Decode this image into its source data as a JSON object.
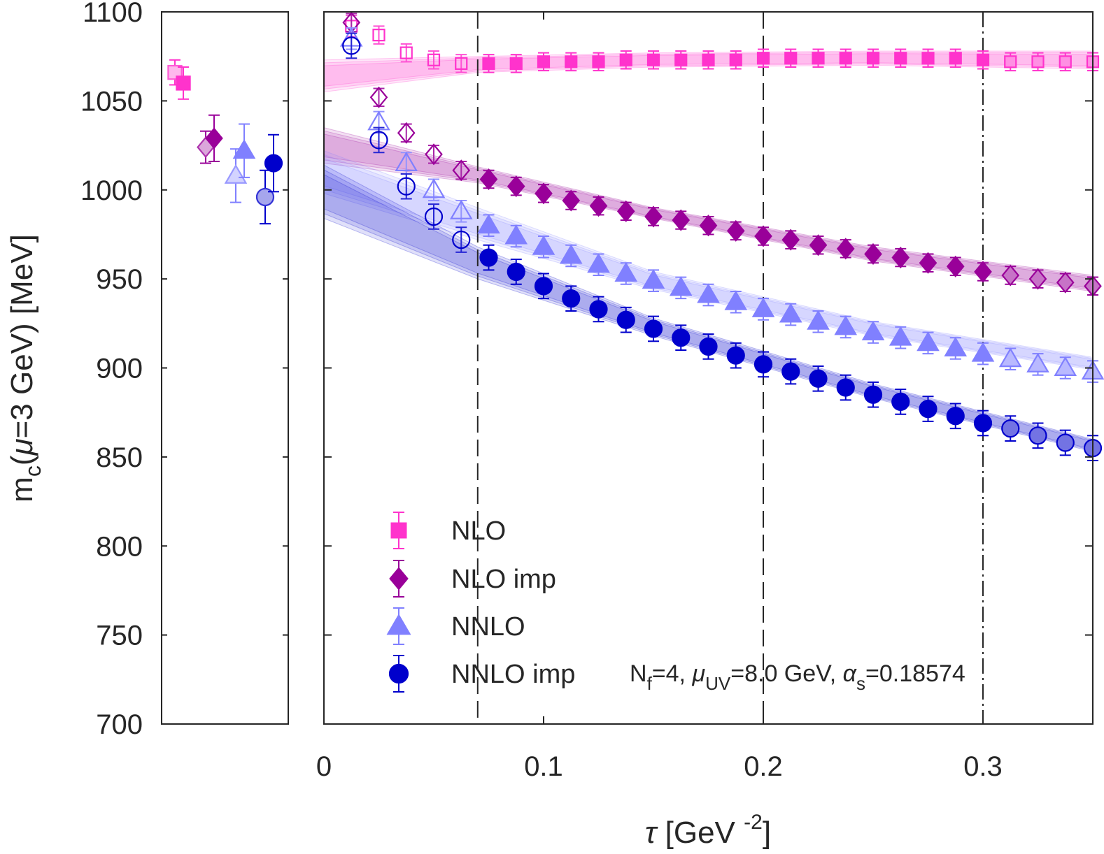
{
  "chart_data": {
    "type": "scatter",
    "title": "",
    "xlabel": {
      "symbol": "τ",
      "unit_base": "[GeV",
      "unit_exp": "-2",
      "close": "]"
    },
    "ylabel": {
      "base": "m",
      "sub": "c",
      "open": "(",
      "mu": "μ",
      "rest": "=3 GeV) [MeV]"
    },
    "xlim": [
      0,
      0.35
    ],
    "ylim": [
      700,
      1100
    ],
    "xticks": [
      "0",
      "0.1",
      "0.2",
      "0.3"
    ],
    "xtick_values": [
      0,
      0.1,
      0.2,
      0.3
    ],
    "yticks": [
      "700",
      "750",
      "800",
      "850",
      "900",
      "950",
      "1000",
      "1050",
      "1100"
    ],
    "ytick_values": [
      700,
      750,
      800,
      850,
      900,
      950,
      1000,
      1050,
      1100
    ],
    "vlines": [
      {
        "x": 0.07,
        "style": "dashed"
      },
      {
        "x": 0.2,
        "style": "dashed"
      },
      {
        "x": 0.3,
        "style": "dashdot"
      }
    ],
    "fit_range": [
      0.07,
      0.3
    ],
    "annotation": {
      "n": "N",
      "nsub": "f",
      "a": "=4, ",
      "mu": "μ",
      "musub": "UV",
      "b": "=8.0 GeV, ",
      "alpha": "α",
      "alphasub": "s",
      "c": "=0.18574"
    },
    "x": [
      0.0125,
      0.025,
      0.0375,
      0.05,
      0.0625,
      0.075,
      0.0875,
      0.1,
      0.1125,
      0.125,
      0.1375,
      0.15,
      0.1625,
      0.175,
      0.1875,
      0.2,
      0.2125,
      0.225,
      0.2375,
      0.25,
      0.2625,
      0.275,
      0.2875,
      0.3,
      0.3125,
      0.325,
      0.3375,
      0.35
    ],
    "series": [
      {
        "name": "NLO",
        "marker": "square",
        "color": "#ff33cc",
        "values": [
          1092,
          1087,
          1077,
          1073,
          1071,
          1071,
          1071,
          1072,
          1072,
          1072,
          1073,
          1073,
          1073,
          1073,
          1073,
          1074,
          1074,
          1074,
          1074,
          1074,
          1074,
          1074,
          1074,
          1073,
          1072,
          1072,
          1072,
          1072
        ],
        "errors": [
          6,
          5,
          5,
          5,
          5,
          5,
          5,
          5,
          5,
          5,
          5,
          5,
          5,
          5,
          5,
          5,
          5,
          5,
          5,
          5,
          5,
          5,
          5,
          5,
          5,
          5,
          5,
          5
        ],
        "band": {
          "x": [
            0,
            0.07,
            0.15,
            0.25,
            0.35
          ],
          "lo": [
            1055,
            1066,
            1069,
            1070,
            1068
          ],
          "hi": [
            1073,
            1075,
            1077,
            1078,
            1078
          ]
        },
        "compare": [
          {
            "value": 1066,
            "err": 7,
            "style": "open"
          },
          {
            "value": 1060,
            "err": 9,
            "style": "filled"
          }
        ]
      },
      {
        "name": "NLO imp",
        "marker": "diamond",
        "color": "#990099",
        "values": [
          1094,
          1052,
          1032,
          1020,
          1011,
          1006,
          1002,
          998,
          994,
          991,
          988,
          985,
          983,
          980,
          977,
          974,
          972,
          969,
          967,
          964,
          962,
          959,
          957,
          954,
          952,
          950,
          948,
          946
        ],
        "errors": [
          5,
          5,
          5,
          5,
          5,
          5,
          5,
          5,
          5,
          5,
          5,
          5,
          5,
          5,
          5,
          5,
          5,
          5,
          5,
          5,
          5,
          5,
          5,
          5,
          5,
          5,
          5,
          5
        ],
        "band": {
          "x": [
            0,
            0.07,
            0.15,
            0.25,
            0.35
          ],
          "lo": [
            1015,
            1004,
            984,
            960,
            943
          ],
          "hi": [
            1035,
            1013,
            990,
            968,
            952
          ]
        },
        "compare": [
          {
            "value": 1024,
            "err": 9,
            "style": "open"
          },
          {
            "value": 1029,
            "err": 13,
            "style": "filled"
          }
        ]
      },
      {
        "name": "NNLO",
        "marker": "triangle",
        "color": "#8080ff",
        "values": [
          1085,
          1038,
          1015,
          1000,
          988,
          980,
          974,
          968,
          963,
          958,
          953,
          949,
          945,
          941,
          937,
          933,
          930,
          926,
          923,
          920,
          917,
          914,
          911,
          908,
          905,
          902,
          900,
          898
        ],
        "errors": [
          6,
          6,
          6,
          6,
          6,
          6,
          6,
          6,
          6,
          6,
          6,
          6,
          6,
          6,
          6,
          6,
          6,
          6,
          6,
          6,
          6,
          6,
          6,
          6,
          6,
          6,
          6,
          6
        ],
        "band": {
          "x": [
            0,
            0.07,
            0.15,
            0.25,
            0.35
          ],
          "lo": [
            998,
            972,
            944,
            918,
            899
          ],
          "hi": [
            1022,
            990,
            954,
            926,
            906
          ]
        },
        "compare": [
          {
            "value": 1008,
            "err": 15,
            "style": "open"
          },
          {
            "value": 1022,
            "err": 15,
            "style": "filled"
          }
        ]
      },
      {
        "name": "NNLO imp",
        "marker": "circle",
        "color": "#0000cc",
        "values": [
          1081,
          1028,
          1002,
          985,
          972,
          962,
          954,
          946,
          939,
          933,
          927,
          922,
          917,
          912,
          907,
          902,
          898,
          894,
          889,
          885,
          881,
          877,
          873,
          869,
          866,
          862,
          858,
          855
        ],
        "errors": [
          7,
          7,
          7,
          7,
          7,
          7,
          7,
          7,
          7,
          7,
          7,
          7,
          7,
          7,
          7,
          7,
          7,
          7,
          7,
          7,
          7,
          7,
          7,
          7,
          7,
          7,
          7,
          7
        ],
        "band": {
          "x": [
            0,
            0.07,
            0.15,
            0.25,
            0.35
          ],
          "lo": [
            984,
            950,
            918,
            883,
            853
          ],
          "hi": [
            1014,
            968,
            928,
            891,
            860
          ]
        },
        "compare": [
          {
            "value": 996,
            "err": 15,
            "style": "open"
          },
          {
            "value": 1015,
            "err": 16,
            "style": "filled"
          }
        ]
      }
    ],
    "legend": {
      "position": "bottom-left",
      "entries": [
        "NLO",
        "NLO imp",
        "NNLO",
        "NNLO imp"
      ]
    }
  }
}
